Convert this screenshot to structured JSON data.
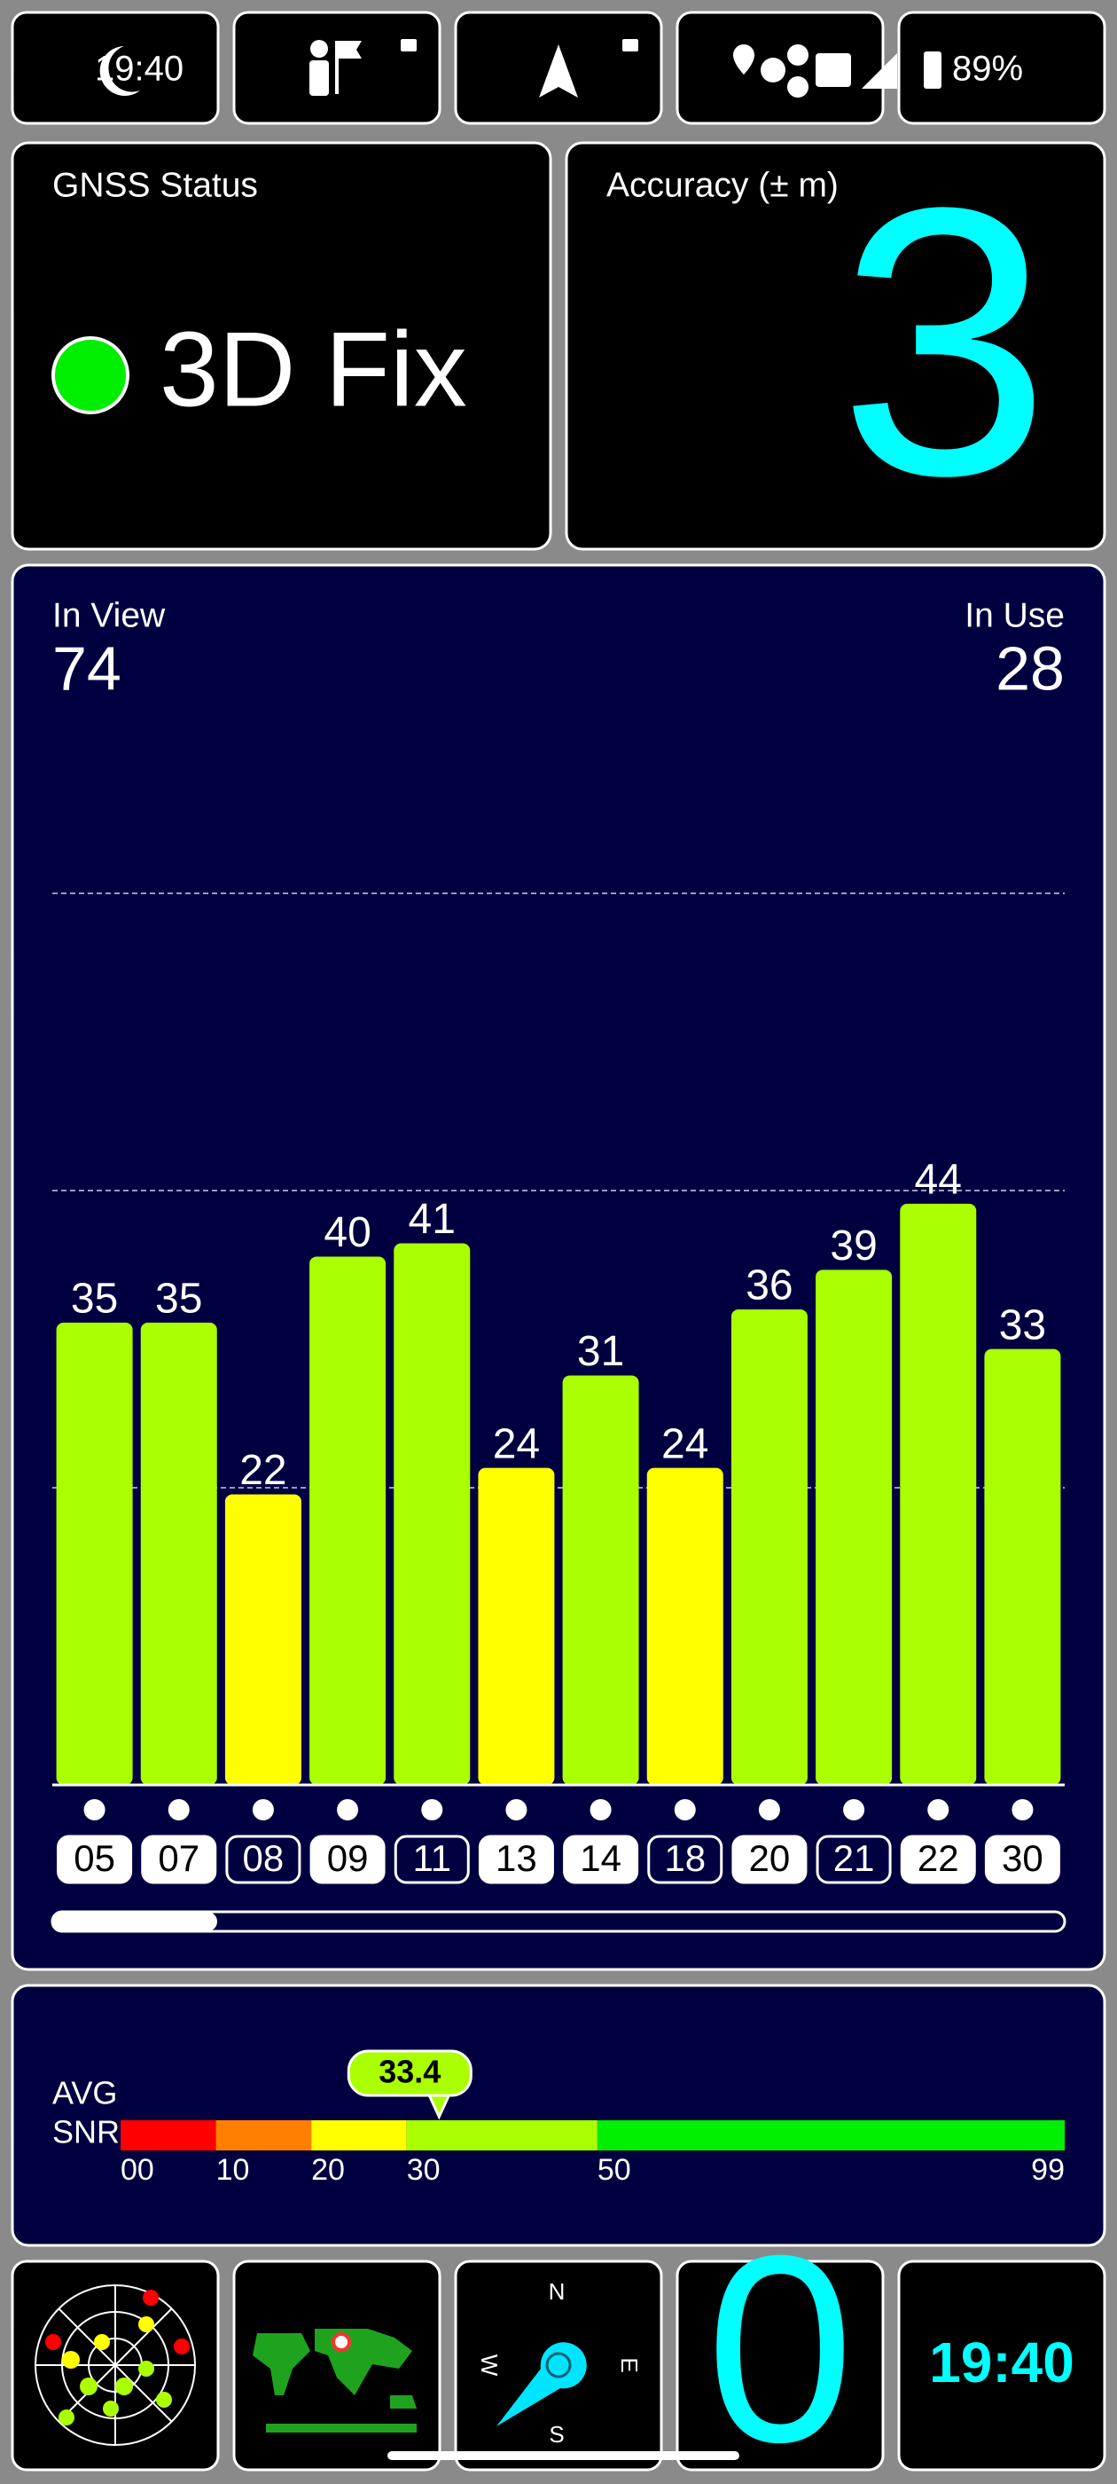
{
  "status_bar": {
    "time": "19:40",
    "battery": "89%"
  },
  "gnss_status": {
    "label": "GNSS Status",
    "value": "3D Fix"
  },
  "accuracy": {
    "label": "Accuracy (± m)",
    "value": 3
  },
  "satellites": {
    "in_view_label": "In View",
    "in_view": 74,
    "in_use_label": "In Use",
    "in_use": 28
  },
  "chart_data": {
    "type": "bar",
    "categories": [
      "05",
      "07",
      "08",
      "09",
      "11",
      "13",
      "14",
      "18",
      "20",
      "21",
      "22",
      "30"
    ],
    "values": [
      35,
      35,
      22,
      40,
      41,
      24,
      31,
      24,
      36,
      39,
      44,
      33
    ],
    "used": [
      true,
      true,
      false,
      true,
      false,
      true,
      true,
      false,
      true,
      false,
      true,
      true
    ],
    "ylim": [
      0,
      67.5
    ],
    "yticks": [
      22.5,
      45,
      67.5
    ],
    "grid": true
  },
  "avg_snr": {
    "label_top": "AVG",
    "label_bottom": "SNR",
    "value": 33.4,
    "ticks": [
      {
        "value": 0,
        "label": "00"
      },
      10,
      20,
      30,
      50,
      99
    ],
    "colors": [
      "#ff0000",
      "#ff8000",
      "#ffff00",
      "#aaff00",
      "#00ee00"
    ]
  },
  "bottom_tiles": {
    "satellites_used": 0,
    "clock": "19:40"
  },
  "compass": {
    "north": "N",
    "east": "E",
    "south": "S",
    "west": "W"
  }
}
